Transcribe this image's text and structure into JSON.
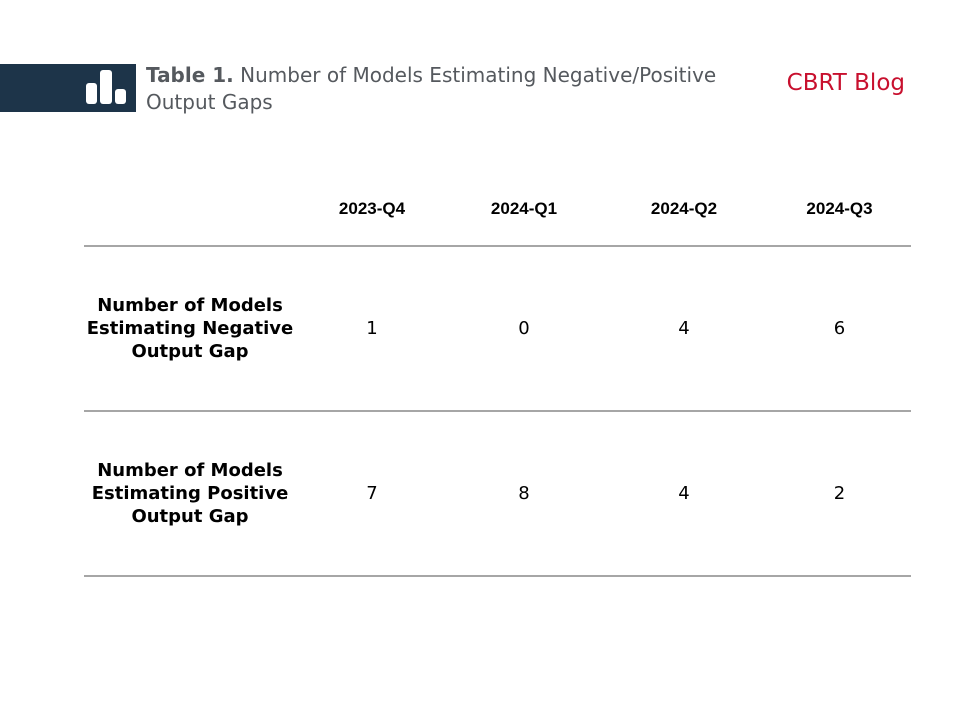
{
  "header": {
    "title_label": "Table 1.",
    "title_text": "Number of Models Estimating Negative/Positive Output Gaps",
    "brand": "CBRT Blog",
    "logo_icon": "bar-chart-icon",
    "brand_color": "#c8102e",
    "band_color": "#1d3449"
  },
  "table": {
    "columns": [
      "",
      "2023-Q4",
      "2024-Q1",
      "2024-Q2",
      "2024-Q3"
    ],
    "rows": [
      {
        "label": "Number of Models Estimating Negative Output Gap",
        "values": [
          "1",
          "0",
          "4",
          "6"
        ]
      },
      {
        "label": "Number of Models Estimating Positive Output Gap",
        "values": [
          "7",
          "8",
          "4",
          "2"
        ]
      }
    ]
  }
}
